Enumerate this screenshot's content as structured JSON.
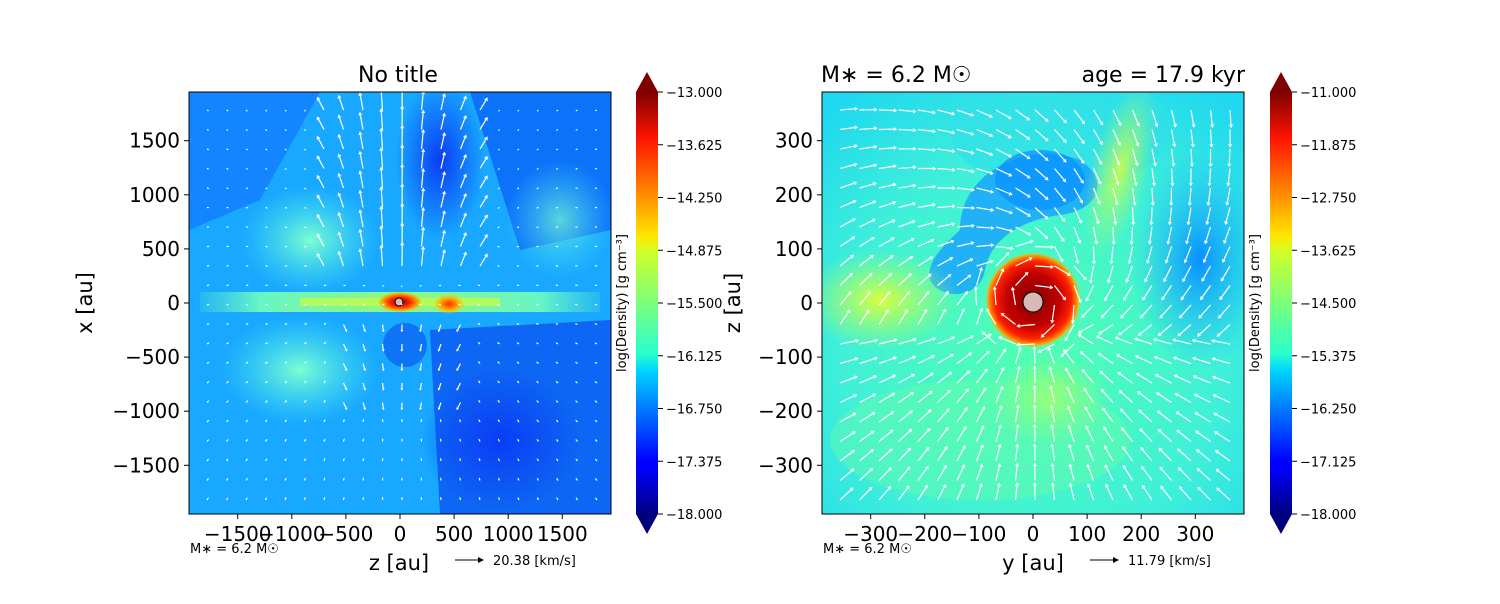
{
  "chart_data": [
    {
      "type": "heatmap",
      "title": "No title",
      "xlabel": "z [au]",
      "ylabel": "x [au]",
      "xlim": [
        -1950,
        1950
      ],
      "ylim": [
        -1950,
        1950
      ],
      "xticks": [
        -1500,
        -1000,
        -500,
        0,
        500,
        1000,
        1500
      ],
      "yticks": [
        -1500,
        -1000,
        -500,
        0,
        500,
        1000,
        1500
      ],
      "colorbar_label": "log(Density) [g cm⁻³]",
      "colorbar_range": [
        -18.0,
        -13.0
      ],
      "colorbar_ticks": [
        "−13.000",
        "−13.625",
        "−14.250",
        "−14.875",
        "−15.500",
        "−16.125",
        "−16.750",
        "−17.375",
        "−18.000"
      ],
      "stellar_mass_note": "M∗ = 6.2 M☉",
      "vector_scale_label": "20.38 [km/s]"
    },
    {
      "type": "heatmap",
      "title": "M∗ = 6.2 M☉",
      "title_right": "age = 17.9 kyr",
      "xlabel": "y [au]",
      "ylabel": "z [au]",
      "xlim": [
        -390,
        390
      ],
      "ylim": [
        -390,
        390
      ],
      "xticks": [
        -300,
        -200,
        -100,
        0,
        100,
        200,
        300
      ],
      "yticks": [
        -300,
        -200,
        -100,
        0,
        100,
        200,
        300
      ],
      "colorbar_label": "log(Density) [g cm⁻³]",
      "colorbar_range": [
        -18.0,
        -11.0
      ],
      "colorbar_ticks": [
        "−11.000",
        "−11.875",
        "−12.750",
        "−13.625",
        "−14.500",
        "−15.375",
        "−16.250",
        "−17.125",
        "−18.000"
      ],
      "stellar_mass_note": "M∗ = 6.2 M☉",
      "vector_scale_label": "11.79 [km/s]"
    }
  ]
}
